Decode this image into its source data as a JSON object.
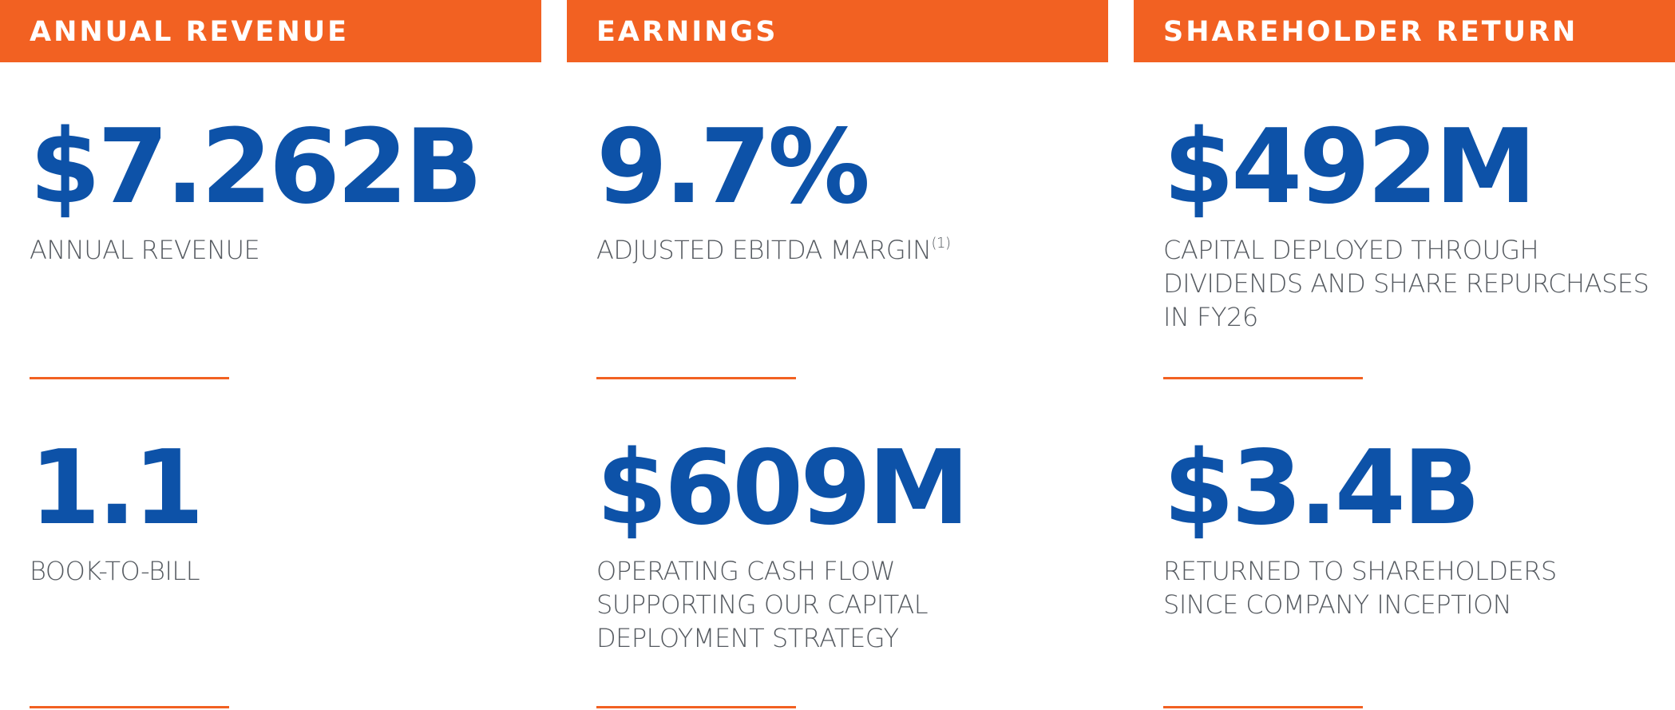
{
  "accent_color": "#f26122",
  "value_color": "#0d52a8",
  "columns": [
    {
      "header": "ANNUAL REVENUE",
      "metrics": [
        {
          "value": "$7.262B",
          "description": "ANNUAL REVENUE",
          "footnote": ""
        },
        {
          "value": "1.1",
          "description": "BOOK-TO-BILL",
          "footnote": ""
        }
      ]
    },
    {
      "header": "EARNINGS",
      "metrics": [
        {
          "value": "9.7%",
          "description": "ADJUSTED EBITDA MARGIN",
          "footnote": "(1)"
        },
        {
          "value": "$609M",
          "description": "OPERATING CASH FLOW\nSUPPORTING OUR CAPITAL\nDEPLOYMENT STRATEGY",
          "footnote": ""
        }
      ]
    },
    {
      "header": "SHAREHOLDER RETURN",
      "metrics": [
        {
          "value": "$492M",
          "description": "CAPITAL DEPLOYED THROUGH\nDIVIDENDS AND SHARE REPURCHASES\nIN FY26",
          "footnote": ""
        },
        {
          "value": "$3.4B",
          "description": "RETURNED TO SHAREHOLDERS\nSINCE COMPANY INCEPTION",
          "footnote": ""
        }
      ]
    }
  ]
}
